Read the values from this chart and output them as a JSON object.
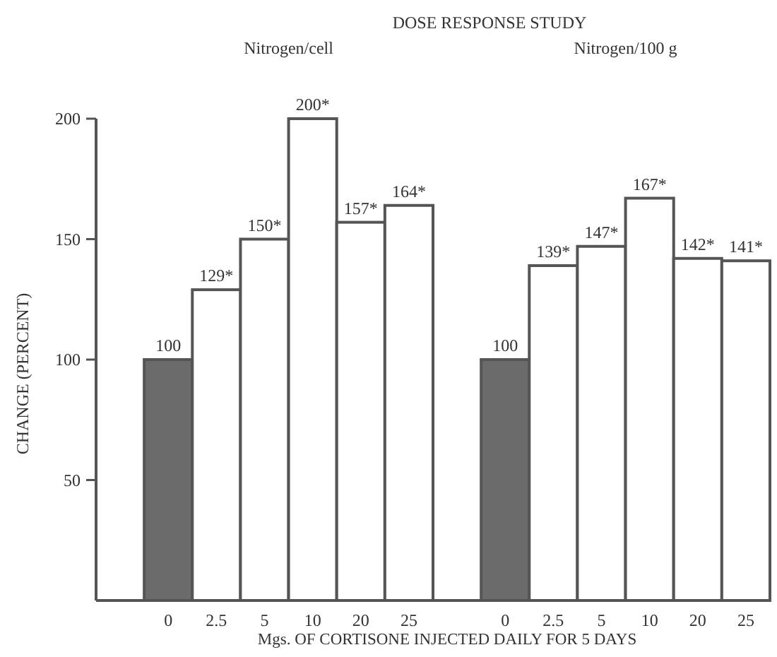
{
  "chart_data": {
    "type": "bar",
    "title": "DOSE RESPONSE STUDY",
    "annotations": [
      "Nitrogen/cell",
      "Nitrogen/100 g"
    ],
    "xlabel": "Mgs. OF CORTISONE INJECTED DAILY FOR 5 DAYS",
    "ylabel": "CHANGE (PERCENT)",
    "categories": [
      "0",
      "2.5",
      "5",
      "10",
      "20",
      "25",
      null,
      "0",
      "2.5",
      "5",
      "10",
      "20",
      "25"
    ],
    "values": [
      100,
      129,
      150,
      200,
      157,
      164,
      null,
      100,
      139,
      147,
      167,
      142,
      141
    ],
    "value_labels": [
      "100",
      "129*",
      "150*",
      "200*",
      "157*",
      "164*",
      null,
      "100",
      "139*",
      "147*",
      "167*",
      "142*",
      "141*"
    ],
    "colors": [
      "#6b6b6b",
      "#ffffff",
      "#ffffff",
      "#ffffff",
      "#ffffff",
      "#ffffff",
      null,
      "#6b6b6b",
      "#ffffff",
      "#ffffff",
      "#ffffff",
      "#ffffff",
      "#ffffff"
    ],
    "ylim": [
      0,
      200
    ],
    "yticks": [
      50,
      100,
      150,
      200
    ],
    "grid": false
  }
}
